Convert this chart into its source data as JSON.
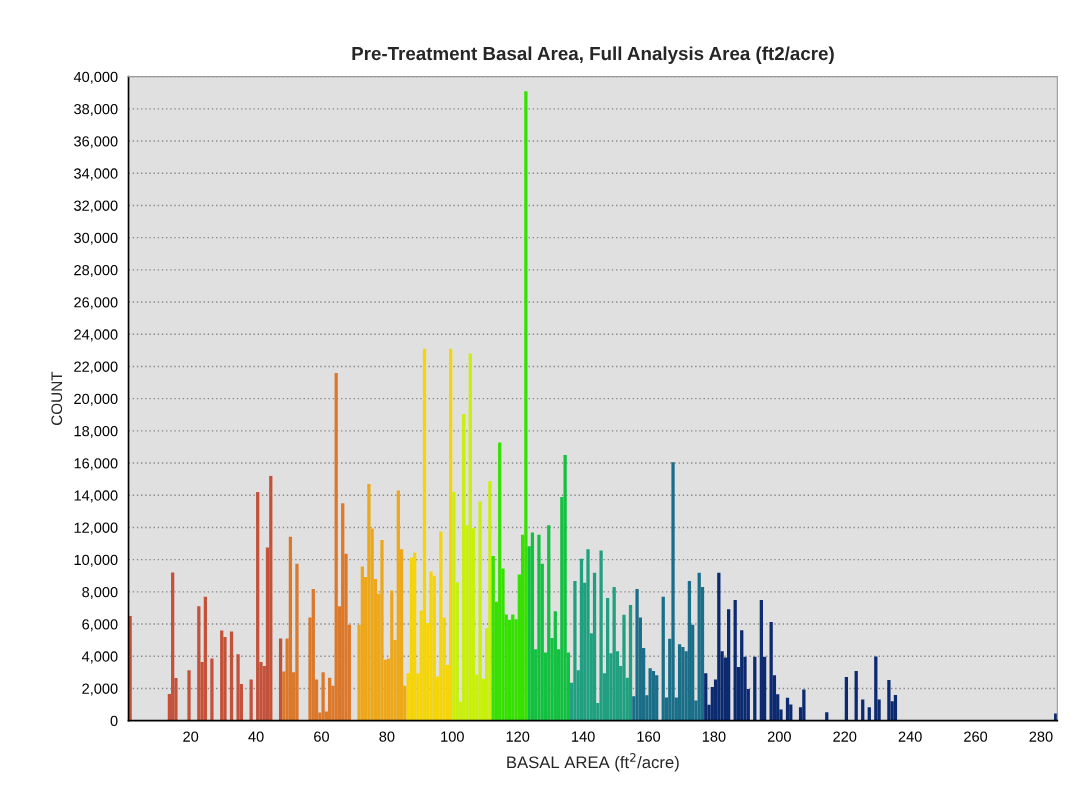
{
  "chart_data": {
    "type": "histogram",
    "title": "Pre-Treatment Basal Area, Full Analysis Area (ft2/acre)",
    "xlabel": "BASAL AREA (ft$^{2}$/acre)",
    "ylabel": "COUNT",
    "bins": [
      1,
      2,
      3,
      4,
      5,
      6,
      7,
      8,
      9,
      10,
      11,
      12,
      13,
      14,
      15,
      16,
      17,
      18,
      19,
      20,
      21,
      22,
      23,
      24,
      25,
      26,
      27,
      28,
      29,
      30,
      31,
      32,
      33,
      34,
      35,
      36,
      37,
      38,
      39,
      40,
      41,
      42,
      43,
      44,
      45,
      46,
      47,
      48,
      49,
      50,
      51,
      52,
      53,
      54,
      55,
      56,
      57,
      58,
      59,
      60,
      61,
      62,
      63,
      64,
      65,
      66,
      67,
      68,
      69,
      70,
      71,
      72,
      73,
      74,
      75,
      76,
      77,
      78,
      79,
      80,
      81,
      82,
      83,
      84,
      85,
      86,
      87,
      88,
      89,
      90,
      91,
      92,
      93,
      94,
      95,
      96,
      97,
      98,
      99,
      100,
      101,
      102,
      103,
      104,
      105,
      106,
      107,
      108,
      109,
      110,
      111,
      112,
      113,
      114,
      115,
      116,
      117,
      118,
      119,
      120,
      121,
      122,
      123,
      124,
      125,
      126,
      127,
      128,
      129,
      130,
      131,
      132,
      133,
      134,
      135,
      136,
      137,
      138,
      139,
      140,
      141,
      142,
      143,
      144,
      145,
      146,
      147,
      148,
      149,
      150,
      151,
      152,
      153,
      154,
      155,
      156,
      157,
      158,
      159,
      160,
      161,
      162,
      163,
      164,
      165,
      166,
      167,
      168,
      169,
      170,
      171,
      172,
      173,
      174,
      175,
      176,
      177,
      178,
      179,
      180,
      181,
      182,
      183,
      184,
      185,
      186,
      187,
      188,
      189,
      190,
      191,
      192,
      193,
      194,
      195,
      196,
      197,
      198,
      199,
      200,
      201,
      202,
      203,
      204,
      205,
      206,
      207,
      208,
      209,
      210,
      211,
      212,
      213,
      214,
      215,
      216,
      217,
      218,
      219,
      220,
      221,
      222,
      223,
      224,
      225,
      226,
      227,
      228,
      229,
      230,
      231,
      232,
      233,
      234,
      235,
      236,
      237,
      238,
      239,
      240,
      241,
      242,
      243,
      244,
      245,
      246,
      247,
      248,
      249,
      250,
      251,
      252,
      253,
      254,
      255,
      256,
      257,
      258,
      259,
      260,
      261,
      262,
      263,
      264,
      265,
      266,
      267,
      268,
      269,
      270,
      271,
      272,
      273,
      274,
      275,
      276,
      277,
      278,
      279,
      280,
      281,
      282,
      283,
      284,
      285
    ],
    "values": [
      6500,
      0,
      0,
      0,
      0,
      0,
      0,
      0,
      0,
      0,
      0,
      0,
      1650,
      9200,
      2650,
      0,
      0,
      0,
      3130,
      0,
      0,
      7100,
      3650,
      7700,
      0,
      3860,
      0,
      0,
      5600,
      5200,
      0,
      5530,
      0,
      4120,
      2270,
      0,
      0,
      2560,
      0,
      14200,
      3650,
      3400,
      10750,
      15200,
      0,
      0,
      5100,
      3050,
      5100,
      11430,
      3000,
      9740,
      0,
      0,
      0,
      6400,
      8170,
      2560,
      500,
      3000,
      570,
      2660,
      2170,
      21600,
      7100,
      13500,
      10360,
      5950,
      0,
      0,
      5950,
      9580,
      8930,
      14700,
      11930,
      8800,
      7880,
      11220,
      3780,
      3860,
      8090,
      5010,
      14300,
      10650,
      2170,
      2950,
      10130,
      10440,
      2950,
      6840,
      23100,
      6060,
      9270,
      9000,
      2740,
      11750,
      6400,
      3450,
      23100,
      14200,
      8600,
      1170,
      19050,
      12140,
      22800,
      11950,
      2870,
      13620,
      2610,
      5740,
      14880,
      10230,
      7390,
      17280,
      9450,
      6600,
      6260,
      6600,
      6300,
      9080,
      11540,
      39100,
      10830,
      11690,
      4440,
      11540,
      9740,
      4230,
      12140,
      5140,
      6790,
      4440,
      13890,
      16500,
      4230,
      2350,
      8670,
      3130,
      10050,
      8560,
      10650,
      5430,
      9190,
      1100,
      10570,
      2950,
      7620,
      4180,
      8300,
      4310,
      3390,
      6580,
      2660,
      7180,
      1510,
      8170,
      6400,
      4520,
      1570,
      3260,
      3080,
      2820,
      0,
      7700,
      1440,
      5090,
      16050,
      1440,
      4750,
      4570,
      4310,
      8670,
      5950,
      1250,
      9190,
      8300,
      2950,
      990,
      2090,
      2560,
      9190,
      4310,
      3920,
      6920,
      0,
      7490,
      3340,
      5610,
      3970,
      1960,
      0,
      3970,
      0,
      7490,
      3970,
      0,
      6130,
      2820,
      1640,
      700,
      0,
      1420,
      1000,
      0,
      0,
      830,
      1940,
      0,
      0,
      0,
      0,
      0,
      0,
      520,
      0,
      0,
      0,
      0,
      0,
      2710,
      0,
      0,
      3080,
      0,
      1310,
      0,
      830,
      0,
      3980,
      1310,
      0,
      0,
      2520,
      1210,
      1600,
      0,
      0,
      0,
      0,
      0,
      0,
      0,
      0,
      0,
      0,
      0,
      0,
      0,
      0,
      0,
      0,
      0,
      0,
      0,
      0,
      0,
      0,
      0,
      0,
      0,
      0,
      0,
      0,
      0,
      0,
      0,
      0,
      0,
      0,
      0,
      0,
      0,
      0,
      0,
      0,
      0,
      0,
      0,
      0,
      0,
      0,
      0,
      0,
      450
    ],
    "colors": [
      "#c4523a",
      "#c4523a",
      "#c4523a",
      "#c4523a",
      "#c4523a",
      "#c4523a",
      "#c4523a",
      "#c4523a",
      "#c4523a",
      "#c4523a",
      "#c4523a",
      "#c4523a",
      "#c4523a",
      "#c4523a",
      "#c4523a",
      "#c4523a",
      "#c4523a",
      "#c4523a",
      "#c4523a",
      "#c4523a",
      "#c4523a",
      "#c4523a",
      "#c4523a",
      "#c4523a",
      "#c4523a",
      "#c4523a",
      "#c4523a",
      "#c4523a",
      "#c4523a",
      "#c4523a",
      "#c4523a",
      "#c4523a",
      "#c4523a",
      "#c4523a",
      "#c4523a",
      "#c4523a",
      "#c4523a",
      "#c4523a",
      "#c4523a",
      "#c4523a",
      "#c4523a",
      "#c4523a",
      "#c4523a",
      "#c4523a",
      "#c4523a",
      "#c4523a",
      "#c4523a",
      "#dc782a",
      "#dc782a",
      "#dc782a",
      "#dc782a",
      "#dc782a",
      "#dc782a",
      "#dc782a",
      "#dc782a",
      "#dc782a",
      "#dc782a",
      "#dc782a",
      "#dc782a",
      "#dc782a",
      "#dc782a",
      "#dc782a",
      "#dc782a",
      "#dc782a",
      "#dc782a",
      "#dc782a",
      "#dc782a",
      "#dc782a",
      "#dc782a",
      "#dc782a",
      "#eca81a",
      "#eca81a",
      "#eca81a",
      "#eca81a",
      "#eca81a",
      "#eca81a",
      "#eca81a",
      "#eca81a",
      "#eca81a",
      "#eca81a",
      "#eca81a",
      "#eca81a",
      "#eca81a",
      "#eca81a",
      "#eca81a",
      "#f5d50a",
      "#f5d50a",
      "#f5d50a",
      "#f5d50a",
      "#f5d50a",
      "#f5d50a",
      "#f5d50a",
      "#f5d50a",
      "#f5d50a",
      "#f5d50a",
      "#f5d50a",
      "#f5d50a",
      "#f5d50a",
      "#f5d50a",
      "#c8f00a",
      "#c8f00a",
      "#c8f00a",
      "#c8f00a",
      "#c8f00a",
      "#c8f00a",
      "#c8f00a",
      "#c8f00a",
      "#c8f00a",
      "#c8f00a",
      "#c8f00a",
      "#c8f00a",
      "#36e000",
      "#36e000",
      "#36e000",
      "#36e000",
      "#36e000",
      "#36e000",
      "#36e000",
      "#36e000",
      "#36e000",
      "#36e000",
      "#36e000",
      "#14c040",
      "#14c040",
      "#14c040",
      "#14c040",
      "#14c040",
      "#14c040",
      "#14c040",
      "#14c040",
      "#14c040",
      "#14c040",
      "#14c040",
      "#14c040",
      "#14c040",
      "#20a080",
      "#20a080",
      "#20a080",
      "#20a080",
      "#20a080",
      "#20a080",
      "#20a080",
      "#20a080",
      "#20a080",
      "#20a080",
      "#20a080",
      "#20a080",
      "#20a080",
      "#20a080",
      "#20a080",
      "#20a080",
      "#20a080",
      "#20a080",
      "#20a080",
      "#1a6e88",
      "#1a6e88",
      "#1a6e88",
      "#1a6e88",
      "#1a6e88",
      "#1a6e88",
      "#1a6e88",
      "#1a6e88",
      "#1a6e88",
      "#1a6e88",
      "#1a6e88",
      "#1a6e88",
      "#1a6e88",
      "#1a6e88",
      "#1a6e88",
      "#1a6e88",
      "#1a6e88",
      "#1a6e88",
      "#1a6e88",
      "#1a6e88",
      "#1a6e88",
      "#1a6e88",
      "#0c2a70",
      "#0c2a70",
      "#0c2a70",
      "#0c2a70",
      "#0c2a70",
      "#0c2a70",
      "#0c2a70",
      "#0c2a70",
      "#0c2a70",
      "#0c2a70",
      "#0c2a70",
      "#0c2a70",
      "#0c2a70",
      "#0c2a70",
      "#0c2a70",
      "#0c2a70",
      "#0c2a70",
      "#0c2a70",
      "#0c2a70",
      "#0c2a70",
      "#0c2a70",
      "#0c2a70",
      "#0c2a70",
      "#0c2a70",
      "#0c2a70",
      "#0c2a70",
      "#0c2a70",
      "#0c2a70",
      "#0c2a70",
      "#0c2a70",
      "#0c2a70",
      "#0c2a70",
      "#0c2a70",
      "#0c2a70",
      "#0c2a70",
      "#0c2a70",
      "#0c2a70",
      "#0c2a70",
      "#0c2a70",
      "#0c2a70",
      "#0c2a70",
      "#0c2a70",
      "#0c2a70",
      "#0c2a70",
      "#0c2a70",
      "#0c2a70",
      "#0c2a70",
      "#0c2a70",
      "#0c2a70",
      "#0c2a70",
      "#0c2a70",
      "#0c2a70",
      "#0c2a70",
      "#0c2a70",
      "#0c2a70",
      "#0c2a70",
      "#0c2a70",
      "#0c2a70",
      "#0c2a70",
      "#0c2a70",
      "#0c2a70",
      "#0c2a70",
      "#0c2a70",
      "#0c2a70",
      "#0c2a70",
      "#0c2a70",
      "#0c2a70",
      "#0c2a70",
      "#0c2a70",
      "#0c2a70",
      "#0c2a70",
      "#0c2a70",
      "#0c2a70",
      "#0c2a70",
      "#0c2a70",
      "#0c2a70",
      "#0c2a70",
      "#0c2a70",
      "#0c2a70",
      "#0c2a70",
      "#0c2a70",
      "#0c2a70",
      "#0c2a70",
      "#0c2a70",
      "#0c2a70",
      "#0c2a70",
      "#0c2a70",
      "#0c2a70",
      "#0c2a70",
      "#0c2a70",
      "#0c2a70",
      "#0c2a70",
      "#0c2a70",
      "#0c2a70",
      "#0c2a70",
      "#0c2a70",
      "#0c2a70",
      "#0c2a70",
      "#0c2a70",
      "#0c2a70",
      "#0c2a70",
      "#0c2a70",
      "#0c2a70",
      "#0c2a70",
      "#0c2a70",
      "#0c2a70",
      "#0c2a70",
      "#0c2a70"
    ],
    "xlim": [
      1,
      285
    ],
    "xticks": [
      20,
      40,
      60,
      80,
      100,
      120,
      140,
      160,
      180,
      200,
      220,
      240,
      260,
      280
    ],
    "ylim": [
      0,
      40000
    ],
    "yticks": [
      0,
      {
        "value": 2000,
        "label": "2,000"
      },
      {
        "value": 4000,
        "label": "4,000"
      },
      {
        "value": 6000,
        "label": "6,000"
      },
      {
        "value": 8000,
        "label": "8,000"
      },
      {
        "value": 10000,
        "label": "10,000"
      },
      {
        "value": 12000,
        "label": "12,000"
      },
      {
        "value": 14000,
        "label": "14,000"
      },
      {
        "value": 16000,
        "label": "16,000"
      },
      {
        "value": 18000,
        "label": "18,000"
      },
      {
        "value": 20000,
        "label": "20,000"
      },
      {
        "value": 22000,
        "label": "22,000"
      },
      {
        "value": 24000,
        "label": "24,000"
      },
      {
        "value": 26000,
        "label": "26,000"
      },
      {
        "value": 28000,
        "label": "28,000"
      },
      {
        "value": 30000,
        "label": "30,000"
      },
      {
        "value": 32000,
        "label": "32,000"
      },
      {
        "value": 34000,
        "label": "34,000"
      },
      {
        "value": 36000,
        "label": "36,000"
      },
      {
        "value": 38000,
        "label": "38,000"
      },
      {
        "value": 40000,
        "label": "40,000"
      }
    ],
    "grid": "y"
  }
}
